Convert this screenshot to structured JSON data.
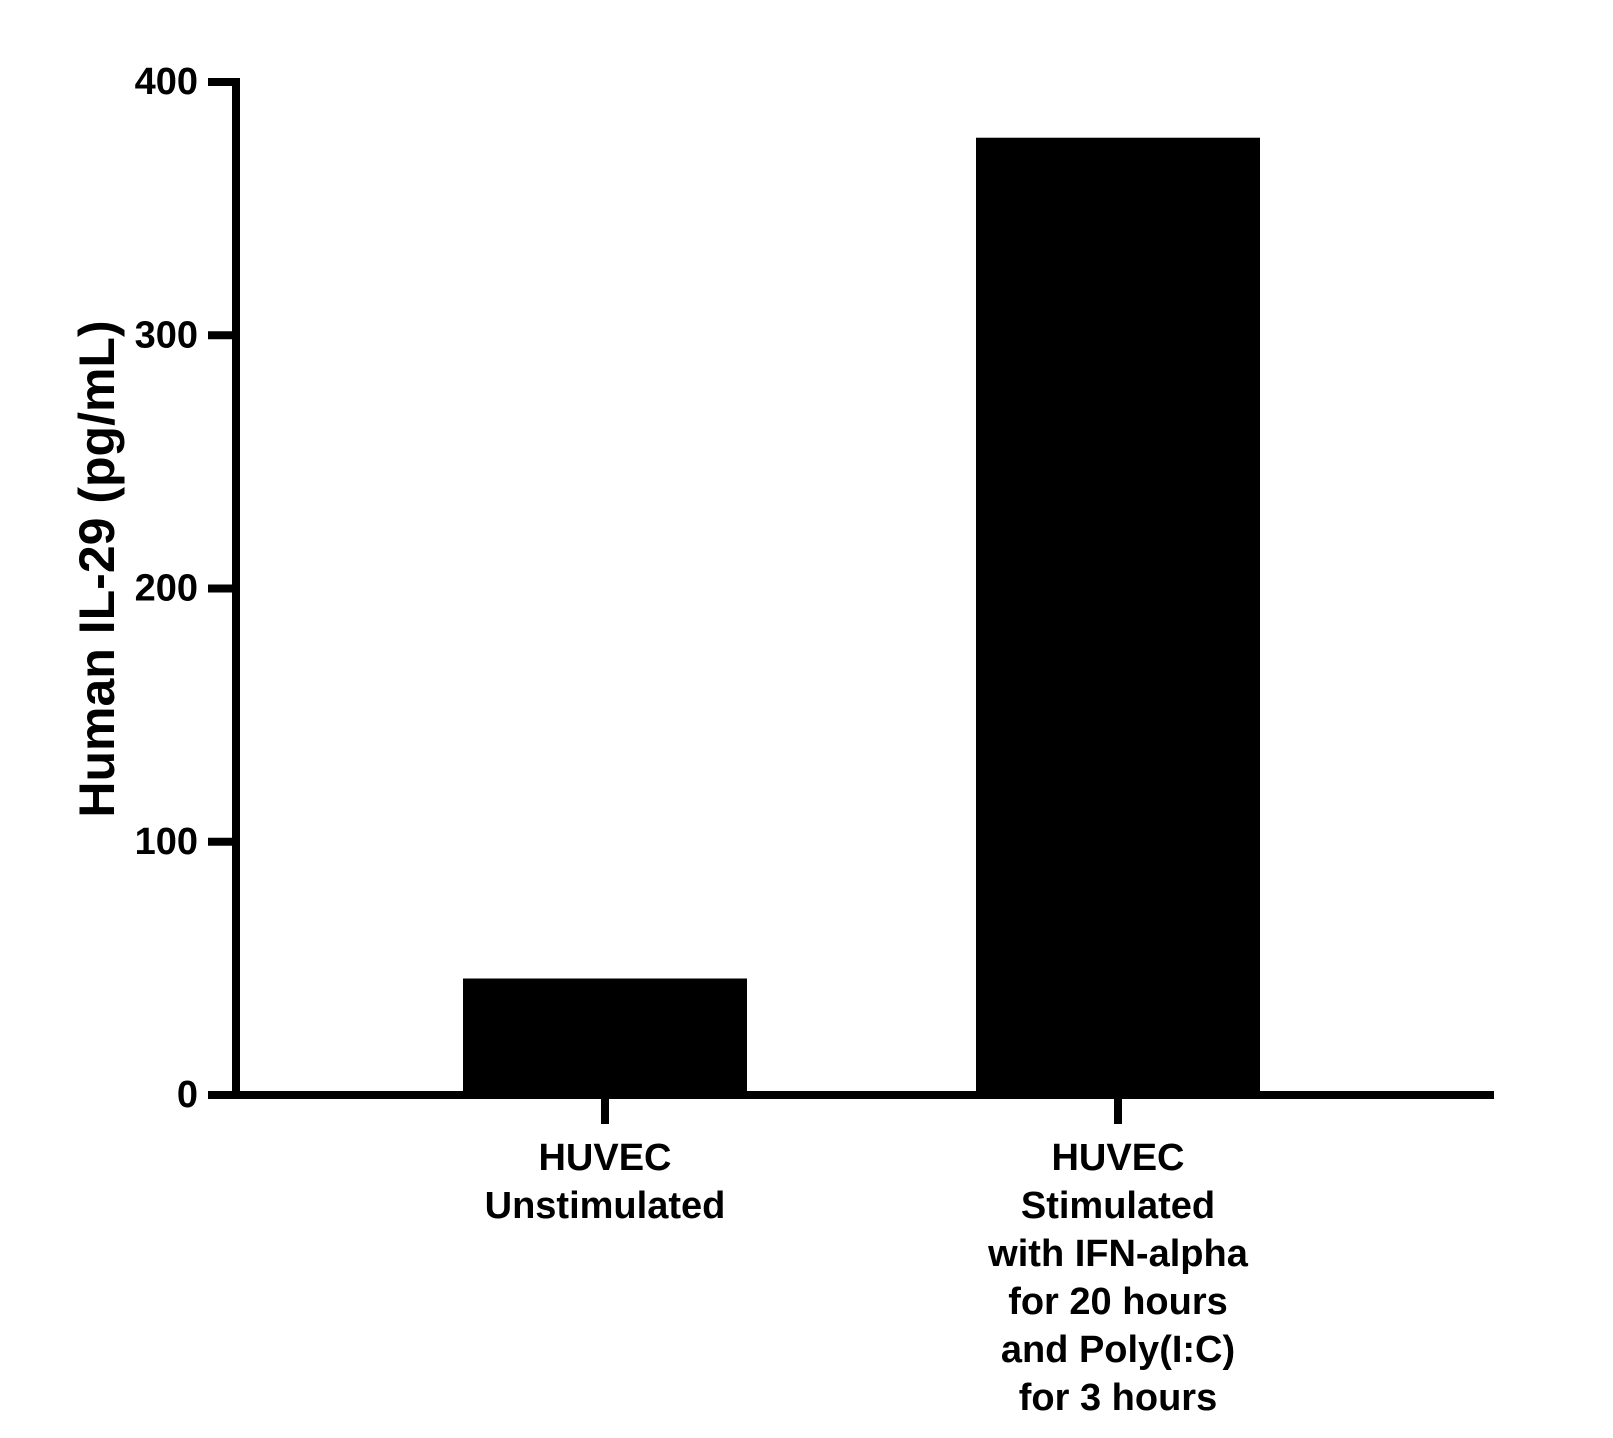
{
  "chart_data": {
    "type": "bar",
    "categories": [
      [
        "HUVEC",
        "Unstimulated"
      ],
      [
        "HUVEC",
        "Stimulated",
        "with IFN-alpha",
        "for 20 hours",
        "and Poly(I:C)",
        "for 3 hours"
      ]
    ],
    "values": [
      46,
      378
    ],
    "xlabel": "",
    "ylabel": "Human IL-29 (pg/mL)",
    "ylim": [
      0,
      400
    ],
    "yticks": [
      0,
      100,
      200,
      300,
      400
    ],
    "bar_color": "#000000",
    "grid": false,
    "legend": "none"
  }
}
